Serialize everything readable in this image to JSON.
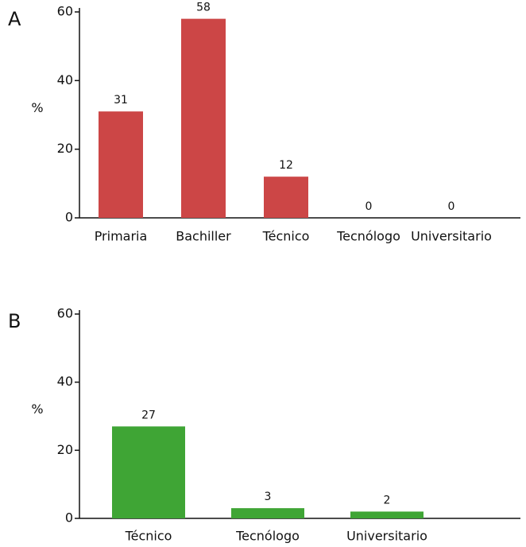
{
  "chart_data": [
    {
      "type": "bar",
      "label": "A",
      "ylabel": "%",
      "categories": [
        "Primaria",
        "Bachiller",
        "Técnico",
        "Tecnólogo",
        "Universitario"
      ],
      "values": [
        31,
        58,
        12,
        0,
        0
      ],
      "color": "#cc4646",
      "ylim": [
        0,
        60
      ],
      "yticks": [
        0,
        20,
        40,
        60
      ]
    },
    {
      "type": "bar",
      "label": "B",
      "ylabel": "%",
      "categories": [
        "Técnico",
        "Tecnólogo",
        "Universitario"
      ],
      "values": [
        27,
        3,
        2
      ],
      "color": "#3fa535",
      "ylim": [
        0,
        60
      ],
      "yticks": [
        0,
        20,
        40,
        60
      ]
    }
  ]
}
